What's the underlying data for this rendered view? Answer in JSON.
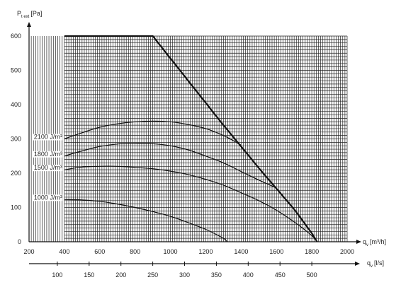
{
  "chart_data": {
    "type": "line",
    "title": "",
    "ylabel_main": "P",
    "ylabel_sub": "t ext",
    "ylabel_unit": "[Pa]",
    "xlabel_top_main": "q",
    "xlabel_top_sub": "v",
    "xlabel_top_unit": "[m³/h]",
    "xlabel_bottom_main": "q",
    "xlabel_bottom_sub": "v",
    "xlabel_bottom_unit": "[l/s]",
    "x_range": [
      200,
      2000
    ],
    "y_range": [
      0,
      600
    ],
    "x_ticks": [
      200,
      400,
      600,
      800,
      1000,
      1200,
      1400,
      1600,
      1800,
      2000
    ],
    "y_ticks": [
      0,
      100,
      200,
      300,
      400,
      500,
      600
    ],
    "x2_ticks": [
      100,
      150,
      200,
      250,
      300,
      350,
      400,
      450,
      500
    ],
    "x2_factor": 3.6,
    "grid": true,
    "series": [
      {
        "name": "",
        "bold": true,
        "points": [
          [
            400,
            600
          ],
          [
            900,
            600
          ],
          [
            1000,
            535
          ],
          [
            1100,
            470
          ],
          [
            1200,
            405
          ],
          [
            1300,
            340
          ],
          [
            1400,
            278
          ],
          [
            1500,
            215
          ],
          [
            1600,
            155
          ],
          [
            1700,
            95
          ],
          [
            1800,
            25
          ],
          [
            1830,
            0
          ]
        ]
      },
      {
        "name": "2100 J/m³",
        "bold": false,
        "points": [
          [
            400,
            300
          ],
          [
            500,
            318
          ],
          [
            600,
            334
          ],
          [
            700,
            344
          ],
          [
            800,
            350
          ],
          [
            900,
            352
          ],
          [
            1000,
            350
          ],
          [
            1100,
            342
          ],
          [
            1200,
            330
          ],
          [
            1300,
            310
          ],
          [
            1400,
            282
          ]
        ]
      },
      {
        "name": "1800 J/m³",
        "bold": false,
        "points": [
          [
            400,
            250
          ],
          [
            500,
            265
          ],
          [
            600,
            278
          ],
          [
            700,
            285
          ],
          [
            800,
            287
          ],
          [
            900,
            286
          ],
          [
            1000,
            280
          ],
          [
            1100,
            268
          ],
          [
            1200,
            250
          ],
          [
            1300,
            230
          ],
          [
            1400,
            205
          ],
          [
            1500,
            180
          ],
          [
            1600,
            157
          ]
        ]
      },
      {
        "name": "1500 J/m³",
        "bold": false,
        "points": [
          [
            400,
            210
          ],
          [
            500,
            218
          ],
          [
            600,
            220
          ],
          [
            700,
            220
          ],
          [
            800,
            217
          ],
          [
            900,
            213
          ],
          [
            1000,
            206
          ],
          [
            1100,
            196
          ],
          [
            1200,
            182
          ],
          [
            1300,
            165
          ],
          [
            1400,
            143
          ],
          [
            1500,
            120
          ],
          [
            1600,
            92
          ],
          [
            1700,
            58
          ],
          [
            1800,
            18
          ],
          [
            1830,
            0
          ]
        ]
      },
      {
        "name": "1000 J/m³",
        "bold": false,
        "points": [
          [
            400,
            123
          ],
          [
            500,
            122
          ],
          [
            600,
            118
          ],
          [
            700,
            110
          ],
          [
            800,
            100
          ],
          [
            900,
            88
          ],
          [
            1000,
            74
          ],
          [
            1100,
            56
          ],
          [
            1200,
            36
          ],
          [
            1300,
            10
          ],
          [
            1320,
            0
          ]
        ]
      }
    ]
  }
}
